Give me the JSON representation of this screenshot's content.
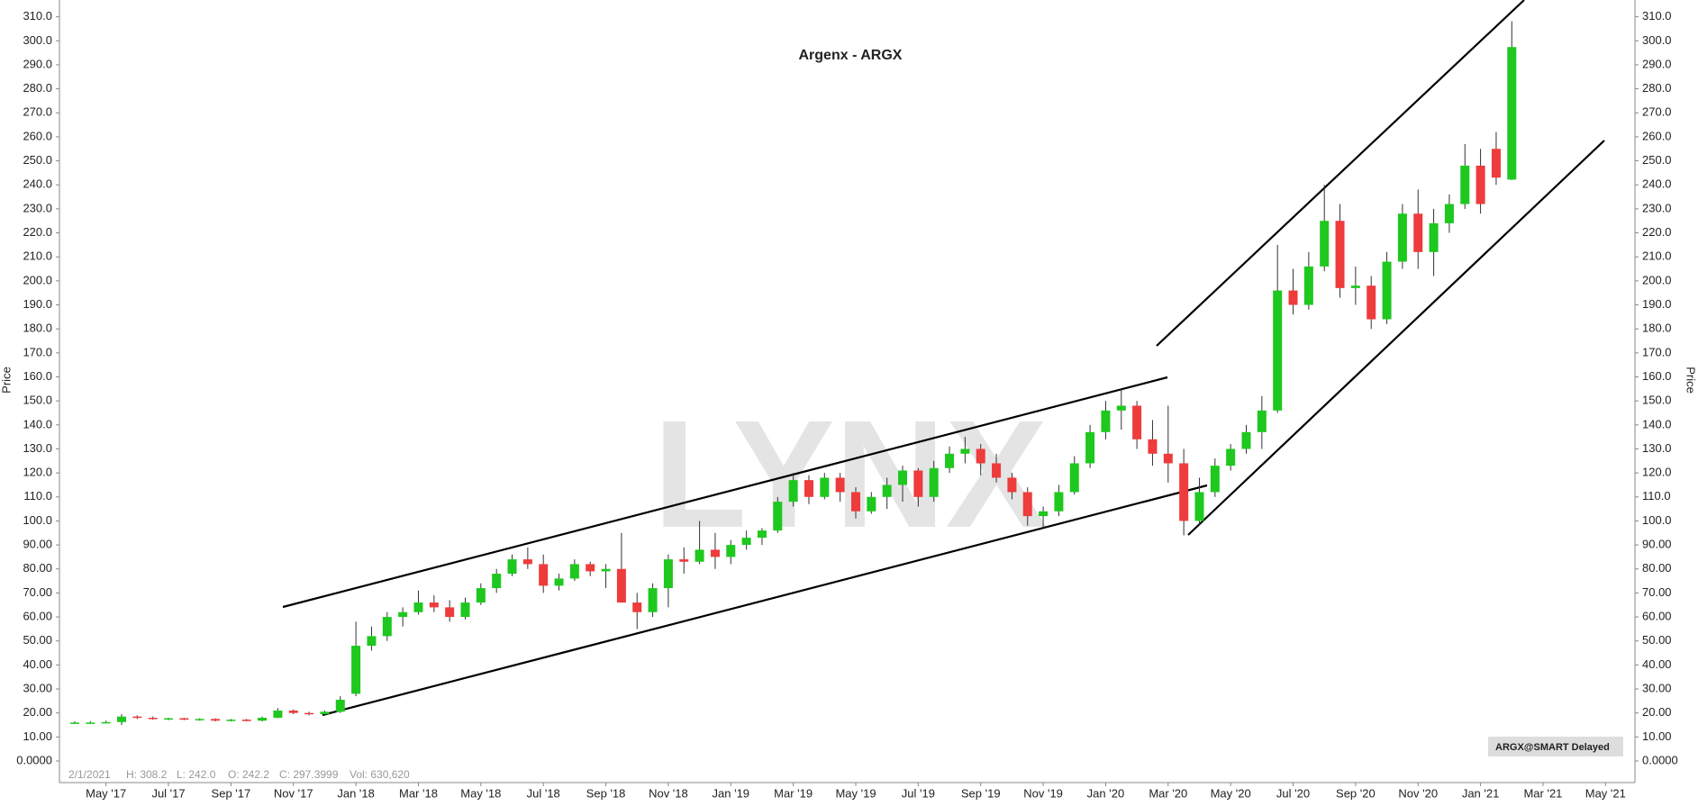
{
  "chart_data": {
    "type": "candlestick",
    "title": "Argenx - ARGX",
    "watermark": "LYNX",
    "y_label": "Price",
    "categories": [
      null,
      null,
      "May '17",
      null,
      null,
      null,
      "Jul '17",
      null,
      null,
      null,
      "Sep '17",
      null,
      null,
      null,
      "Nov '17",
      null,
      null,
      null,
      "Jan '18",
      null,
      null,
      null,
      "Mar '18",
      null,
      null,
      null,
      "May '18",
      null,
      null,
      null,
      "Jul '18",
      null,
      null,
      null,
      "Sep '18",
      null,
      null,
      null,
      "Nov '18",
      null,
      null,
      null,
      "Jan '19",
      null,
      null,
      null,
      "Mar '19",
      null,
      null,
      null,
      "May '19",
      null,
      null,
      null,
      "Jul '19",
      null,
      null,
      null,
      "Sep '19",
      null,
      null,
      null,
      "Nov '19",
      null,
      null,
      null,
      "Jan '20",
      null,
      null,
      null,
      "Mar '20",
      null,
      null,
      null,
      "May '20",
      null,
      null,
      null,
      "Jul '20",
      null,
      null,
      null,
      "Sep '20",
      null,
      null,
      null,
      "Nov '20",
      null,
      null,
      null,
      "Jan '21",
      null,
      null,
      null,
      "Mar '21",
      null,
      null,
      null,
      "May '21",
      null
    ],
    "candles": [
      [
        16,
        16.5,
        15.5,
        16
      ],
      [
        16,
        16.5,
        15.8,
        16
      ],
      [
        16,
        16.8,
        15.8,
        16.2
      ],
      [
        16.2,
        19.5,
        15,
        18.5
      ],
      [
        18.5,
        19,
        17.5,
        18
      ],
      [
        18,
        18.5,
        17.2,
        17.5
      ],
      [
        17.5,
        18,
        17,
        17.8
      ],
      [
        17.8,
        18,
        17,
        17.2
      ],
      [
        17.2,
        17.8,
        16.8,
        17.5
      ],
      [
        17.5,
        17.8,
        16.5,
        16.8
      ],
      [
        16.8,
        17.5,
        16.5,
        17.2
      ],
      [
        17.2,
        17.5,
        16.5,
        16.8
      ],
      [
        16.8,
        18.5,
        16.5,
        18
      ],
      [
        18,
        22,
        17.8,
        21
      ],
      [
        21,
        21.5,
        19.5,
        20
      ],
      [
        20,
        20.5,
        19,
        19.5
      ],
      [
        19.5,
        21,
        19,
        20.5
      ],
      [
        20.5,
        27,
        20,
        25.5
      ],
      [
        28,
        58,
        27,
        48
      ],
      [
        48,
        56,
        46,
        52
      ],
      [
        52,
        62,
        50,
        60
      ],
      [
        60,
        64,
        56,
        62
      ],
      [
        62,
        71,
        61,
        66
      ],
      [
        66,
        69,
        62,
        64
      ],
      [
        64,
        67,
        58,
        60
      ],
      [
        60,
        68,
        59,
        66
      ],
      [
        66,
        74,
        65,
        72
      ],
      [
        72,
        80,
        70,
        78
      ],
      [
        78,
        86,
        77,
        84
      ],
      [
        84,
        89,
        80,
        82
      ],
      [
        82,
        86,
        70,
        73
      ],
      [
        73,
        78,
        71,
        76
      ],
      [
        76,
        84,
        75,
        82
      ],
      [
        82,
        83,
        77,
        79
      ],
      [
        79,
        82,
        72,
        80
      ],
      [
        80,
        95,
        72,
        66
      ],
      [
        66,
        70,
        55,
        62
      ],
      [
        62,
        74,
        60,
        72
      ],
      [
        72,
        86,
        64,
        84
      ],
      [
        84,
        89,
        78,
        83
      ],
      [
        83,
        100,
        82,
        88
      ],
      [
        88,
        95,
        80,
        85
      ],
      [
        85,
        92,
        82,
        90
      ],
      [
        90,
        96,
        88,
        93
      ],
      [
        93,
        97,
        90,
        96
      ],
      [
        96,
        110,
        95,
        108
      ],
      [
        108,
        120,
        106,
        117
      ],
      [
        117,
        119,
        107,
        110
      ],
      [
        110,
        120,
        109,
        118
      ],
      [
        118,
        120,
        108,
        112
      ],
      [
        112,
        114,
        101,
        104
      ],
      [
        104,
        112,
        103,
        110
      ],
      [
        110,
        118,
        105,
        115
      ],
      [
        115,
        123,
        108,
        121
      ],
      [
        121,
        122,
        106,
        110
      ],
      [
        110,
        125,
        108,
        122
      ],
      [
        122,
        131,
        120,
        128
      ],
      [
        128,
        135,
        124,
        130
      ],
      [
        130,
        132,
        119,
        124
      ],
      [
        124,
        128,
        116,
        118
      ],
      [
        118,
        120,
        109,
        112
      ],
      [
        112,
        114,
        98,
        102
      ],
      [
        102,
        106,
        97,
        104
      ],
      [
        104,
        115,
        102,
        112
      ],
      [
        112,
        127,
        111,
        124
      ],
      [
        124,
        140,
        122,
        137
      ],
      [
        137,
        150,
        134,
        146
      ],
      [
        146,
        155,
        138,
        148
      ],
      [
        148,
        150,
        130,
        134
      ],
      [
        134,
        142,
        123,
        128
      ],
      [
        128,
        148,
        116,
        124
      ],
      [
        124,
        130,
        94,
        100
      ],
      [
        100,
        118,
        98,
        112
      ],
      [
        112,
        126,
        110,
        123
      ],
      [
        123,
        132,
        121,
        130
      ],
      [
        130,
        140,
        128,
        137
      ],
      [
        137,
        152,
        130,
        146
      ],
      [
        146,
        215,
        145,
        196
      ],
      [
        196,
        205,
        186,
        190
      ],
      [
        190,
        212,
        188,
        206
      ],
      [
        206,
        240,
        204,
        225
      ],
      [
        225,
        232,
        193,
        197
      ],
      [
        197,
        206,
        190,
        198
      ],
      [
        198,
        202,
        180,
        184
      ],
      [
        184,
        212,
        182,
        208
      ],
      [
        208,
        232,
        205,
        228
      ],
      [
        228,
        238,
        205,
        212
      ],
      [
        212,
        230,
        202,
        224
      ],
      [
        224,
        236,
        220,
        232
      ],
      [
        232,
        257,
        230,
        248
      ],
      [
        248,
        255,
        228,
        232
      ],
      [
        255,
        262,
        240,
        243
      ],
      [
        242.2,
        308.2,
        242.0,
        297.3999
      ],
      null,
      null,
      null,
      null,
      null,
      null,
      null
    ],
    "up_color": "#1ec81e",
    "down_color": "#ee3b3b",
    "ylim": [
      -9,
      317
    ],
    "yticks": [
      {
        "value": 0,
        "label": "0.0000"
      },
      {
        "value": 10,
        "label": "10.00"
      },
      {
        "value": 20,
        "label": "20.00"
      },
      {
        "value": 30,
        "label": "30.00"
      },
      {
        "value": 40,
        "label": "40.00"
      },
      {
        "value": 50,
        "label": "50.00"
      },
      {
        "value": 60,
        "label": "60.00"
      },
      {
        "value": 70,
        "label": "70.00"
      },
      {
        "value": 80,
        "label": "80.00"
      },
      {
        "value": 90,
        "label": "90.00"
      },
      {
        "value": 100,
        "label": "100.0"
      },
      {
        "value": 110,
        "label": "110.0"
      },
      {
        "value": 120,
        "label": "120.0"
      },
      {
        "value": 130,
        "label": "130.0"
      },
      {
        "value": 140,
        "label": "140.0"
      },
      {
        "value": 150,
        "label": "150.0"
      },
      {
        "value": 160,
        "label": "160.0"
      },
      {
        "value": 170,
        "label": "170.0"
      },
      {
        "value": 180,
        "label": "180.0"
      },
      {
        "value": 190,
        "label": "190.0"
      },
      {
        "value": 200,
        "label": "200.0"
      },
      {
        "value": 210,
        "label": "210.0"
      },
      {
        "value": 220,
        "label": "220.0"
      },
      {
        "value": 230,
        "label": "230.0"
      },
      {
        "value": 240,
        "label": "240.0"
      },
      {
        "value": 250,
        "label": "250.0"
      },
      {
        "value": 260,
        "label": "260.0"
      },
      {
        "value": 270,
        "label": "270.0"
      },
      {
        "value": 280,
        "label": "280.0"
      },
      {
        "value": 290,
        "label": "290.0"
      },
      {
        "value": 300,
        "label": "300.0"
      },
      {
        "value": 310,
        "label": "310.0"
      }
    ],
    "status_bar": {
      "date": "2/1/2021",
      "high": "H: 308.2",
      "low": "L: 242.0",
      "open": "O: 242.2",
      "close": "C: 297.3999",
      "volume": "Vol: 630,620"
    },
    "badge": "ARGX@SMART Delayed"
  }
}
